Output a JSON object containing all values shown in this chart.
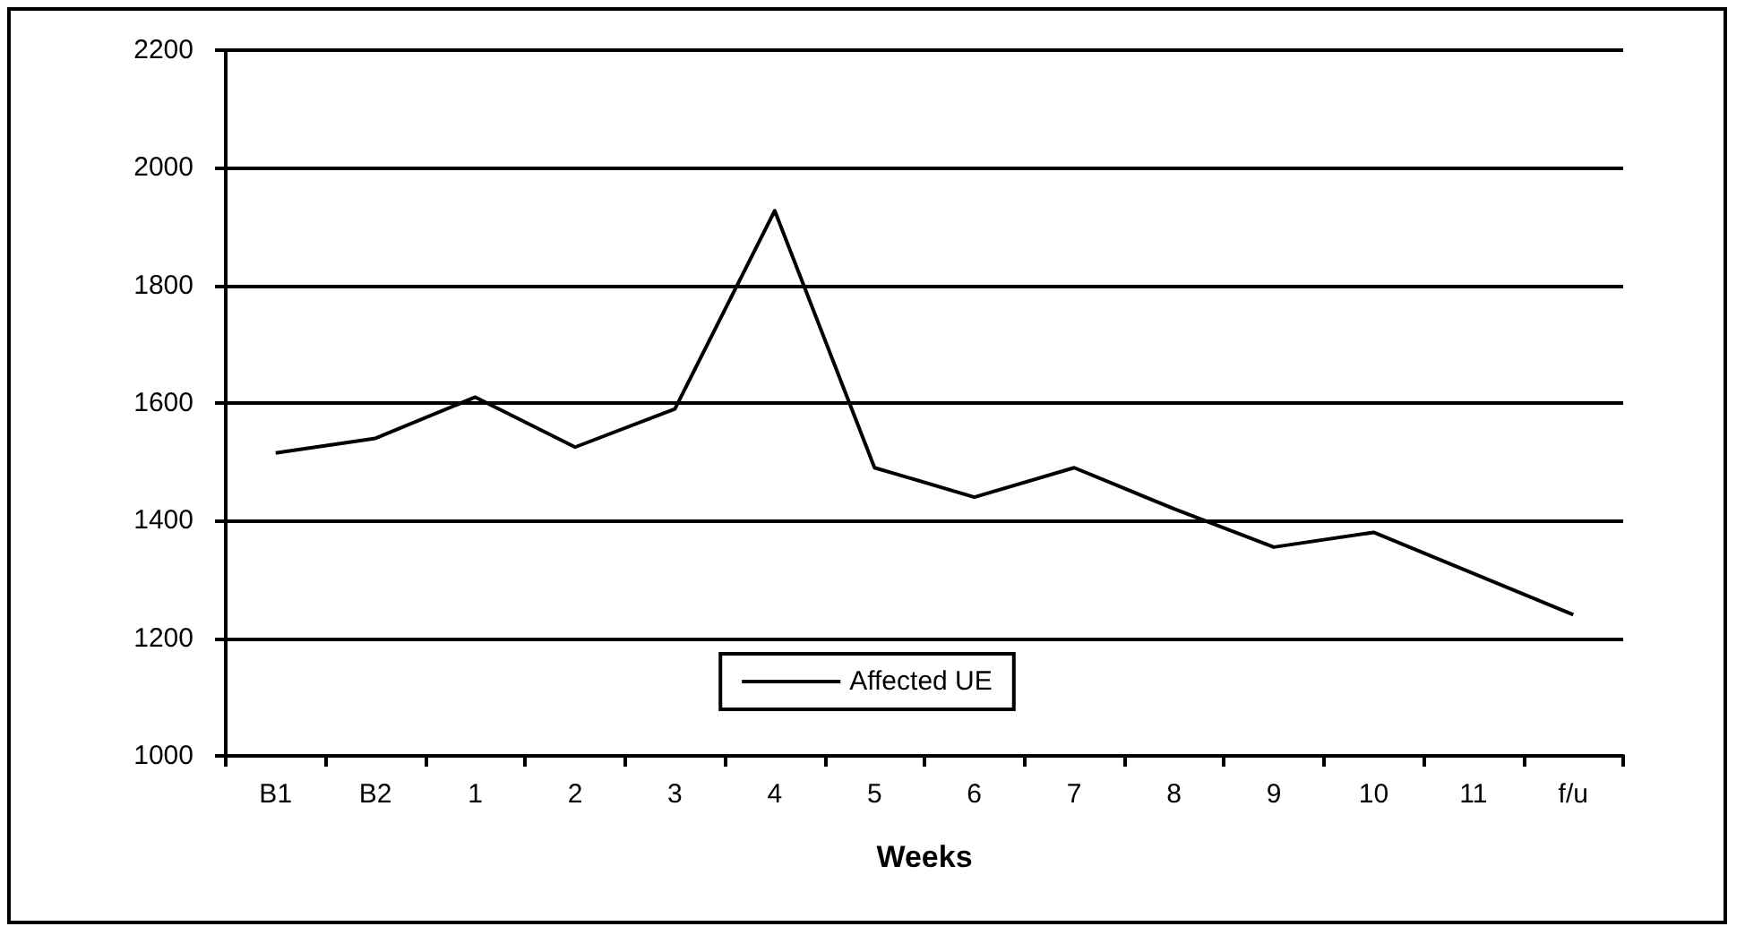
{
  "chart_data": {
    "type": "line",
    "xlabel": "Weeks",
    "categories": [
      "B1",
      "B2",
      "1",
      "2",
      "3",
      "4",
      "5",
      "6",
      "7",
      "8",
      "9",
      "10",
      "11",
      "f/u"
    ],
    "series": [
      {
        "name": "Affected UE",
        "color": "#000000",
        "values": [
          1515,
          1540,
          1610,
          1525,
          1590,
          1927,
          1490,
          1440,
          1490,
          1420,
          1355,
          1380,
          1310,
          1240
        ]
      }
    ],
    "ylim": [
      1000,
      2200
    ],
    "yticks": [
      1000,
      1200,
      1400,
      1600,
      1800,
      2000,
      2200
    ],
    "grid": "y",
    "legend": "bottom",
    "marker": "none",
    "line_style": "solid"
  }
}
